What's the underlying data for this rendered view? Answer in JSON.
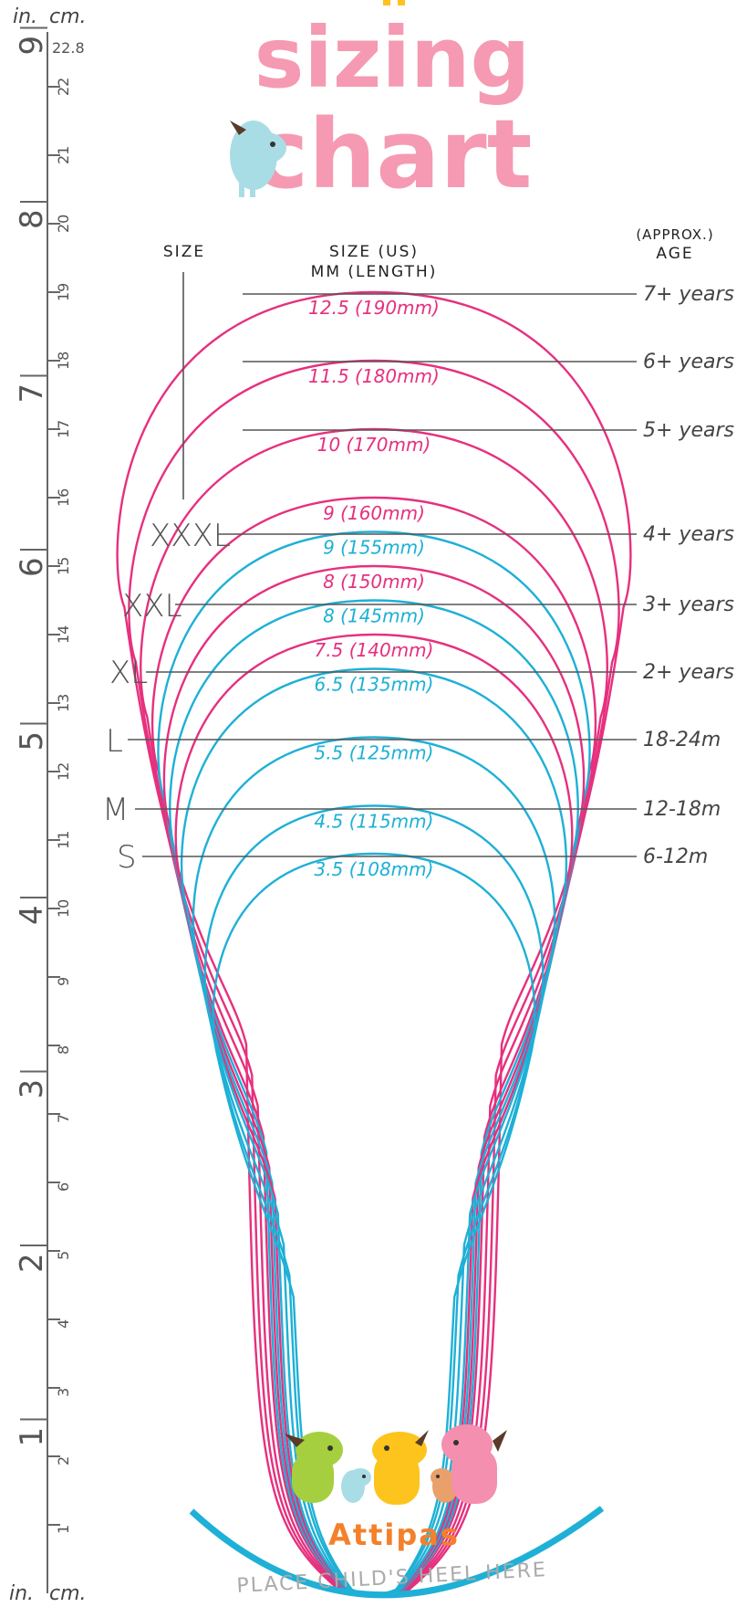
{
  "title": {
    "line1": "sizing",
    "line2": "chart"
  },
  "headers": {
    "size": "SIZE",
    "size_us": "SIZE (US)",
    "mm_length": "MM (LENGTH)",
    "approx": "(APPROX.)",
    "age": "AGE"
  },
  "ruler": {
    "inch_unit": "in.",
    "cm_unit": "cm.",
    "top_cm_value": "22.8",
    "inch_labels": [
      "1",
      "2",
      "3",
      "4",
      "5",
      "6",
      "7",
      "8",
      "9"
    ],
    "cm_labels": [
      "1",
      "2",
      "3",
      "4",
      "5",
      "6",
      "7",
      "8",
      "9",
      "10",
      "11",
      "12",
      "13",
      "14",
      "15",
      "16",
      "17",
      "18",
      "19",
      "20",
      "21",
      "22"
    ]
  },
  "sizes": [
    {
      "label": "XXXL",
      "fits": [
        "9 (160mm)",
        "9 (155mm)"
      ]
    },
    {
      "label": "XXL",
      "fits": [
        "8 (150mm)",
        "8 (145mm)"
      ]
    },
    {
      "label": "XL",
      "fits": [
        "7.5 (140mm)",
        "6.5 (135mm)"
      ]
    },
    {
      "label": "L",
      "fits": [
        "5.5 (125mm)"
      ]
    },
    {
      "label": "M",
      "fits": [
        "4.5 (115mm)"
      ]
    },
    {
      "label": "S",
      "fits": [
        "3.5 (108mm)"
      ]
    }
  ],
  "fit_labels": [
    {
      "text": "12.5 (190mm)",
      "color": "#e6307e"
    },
    {
      "text": "11.5 (180mm)",
      "color": "#e6307e"
    },
    {
      "text": "10 (170mm)",
      "color": "#e6307e"
    },
    {
      "text": "9 (160mm)",
      "color": "#e6307e"
    },
    {
      "text": "9 (155mm)",
      "color": "#1eb0d6"
    },
    {
      "text": "8 (150mm)",
      "color": "#e6307e"
    },
    {
      "text": "8 (145mm)",
      "color": "#1eb0d6"
    },
    {
      "text": "7.5 (140mm)",
      "color": "#e6307e"
    },
    {
      "text": "6.5 (135mm)",
      "color": "#1eb0d6"
    },
    {
      "text": "5.5 (125mm)",
      "color": "#1eb0d6"
    },
    {
      "text": "4.5 (115mm)",
      "color": "#1eb0d6"
    },
    {
      "text": "3.5 (108mm)",
      "color": "#1eb0d6"
    }
  ],
  "size_labels": [
    "XXXL",
    "XXL",
    "XL",
    "L",
    "M",
    "S"
  ],
  "ages": [
    "7+ years",
    "6+ years",
    "5+ years",
    "4+ years",
    "3+ years",
    "2+ years",
    "18-24m",
    "12-18m",
    "6-12m"
  ],
  "brand": "Attipas",
  "heel_text": "PLACE CHILD'S HEEL HERE",
  "colors": {
    "pink": "#e6307e",
    "blue": "#1eb0d6",
    "title_pink": "#f59ab2",
    "brand_orange": "#f4802a"
  }
}
